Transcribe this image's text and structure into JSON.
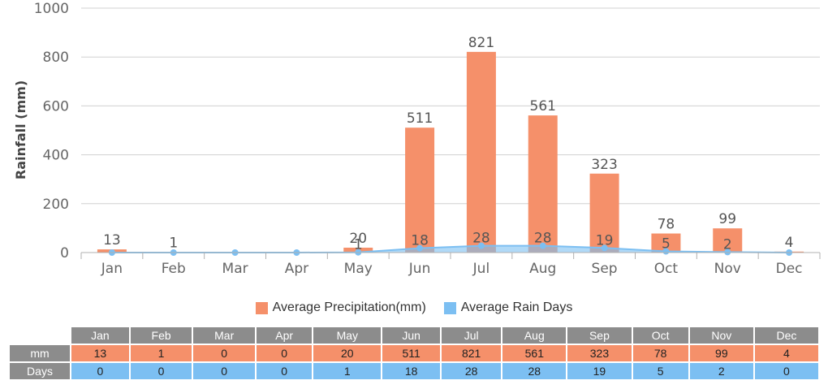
{
  "chart_data": {
    "type": "bar",
    "categories": [
      "Jan",
      "Feb",
      "Mar",
      "Apr",
      "May",
      "Jun",
      "Jul",
      "Aug",
      "Sep",
      "Oct",
      "Nov",
      "Dec"
    ],
    "series": [
      {
        "name": "Average Precipitation(mm)",
        "type": "bar",
        "color": "#f5906a",
        "values": [
          13,
          1,
          0,
          0,
          20,
          511,
          821,
          561,
          323,
          78,
          99,
          4
        ]
      },
      {
        "name": "Average Rain Days",
        "type": "area",
        "color": "#7cbff2",
        "values": [
          0,
          0,
          0,
          0,
          1,
          18,
          28,
          28,
          19,
          5,
          2,
          0
        ]
      }
    ],
    "bar_labels": [
      "13",
      "1",
      "",
      "",
      "20",
      "511",
      "821",
      "561",
      "323",
      "78",
      "99",
      "4"
    ],
    "day_labels": [
      "",
      "",
      "",
      "",
      "1",
      "18",
      "28",
      "28",
      "19",
      "5",
      "2",
      ""
    ],
    "ylabel": "Rainfall (mm)",
    "ylim": [
      0,
      1000
    ],
    "yticks": [
      0,
      200,
      400,
      600,
      800,
      1000
    ],
    "grid": true,
    "legend_position": "bottom-center"
  },
  "table": {
    "months": [
      "Jan",
      "Feb",
      "Mar",
      "Apr",
      "May",
      "Jun",
      "Jul",
      "Aug",
      "Sep",
      "Oct",
      "Nov",
      "Dec"
    ],
    "rows": [
      {
        "label": "mm",
        "values": [
          "13",
          "1",
          "0",
          "0",
          "20",
          "511",
          "821",
          "561",
          "323",
          "78",
          "99",
          "4"
        ]
      },
      {
        "label": "Days",
        "values": [
          "0",
          "0",
          "0",
          "0",
          "1",
          "18",
          "28",
          "28",
          "19",
          "5",
          "2",
          "0"
        ]
      }
    ]
  }
}
